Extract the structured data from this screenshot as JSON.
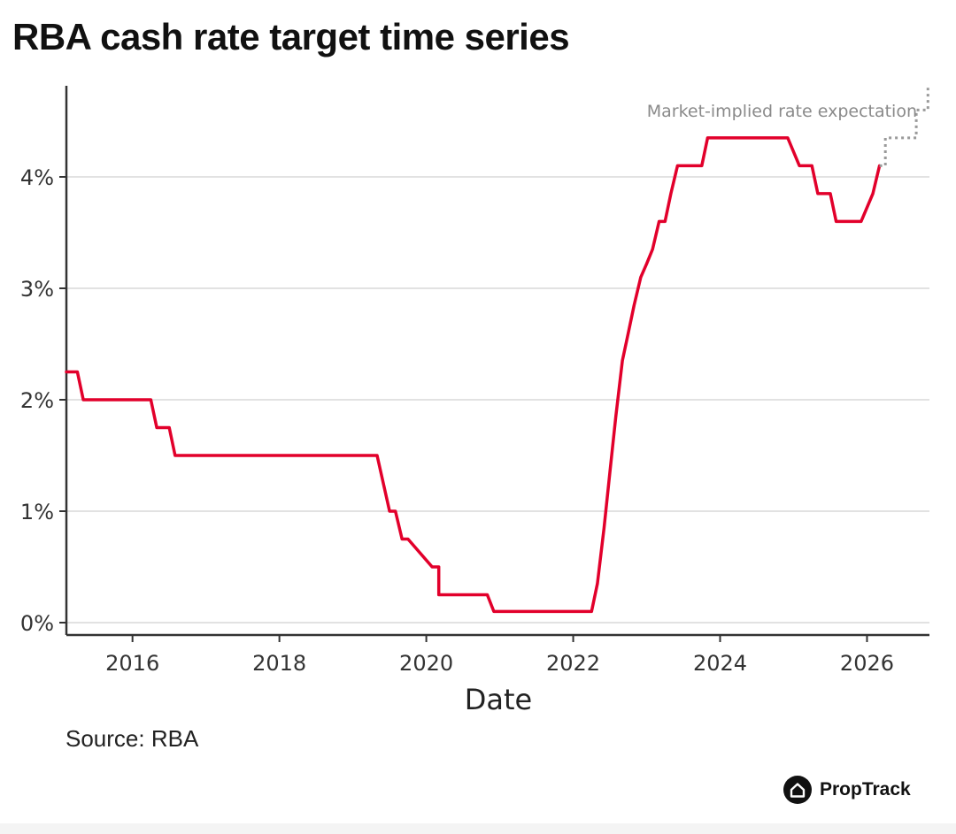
{
  "title": "RBA cash rate target time series",
  "source": "Source: RBA",
  "brand": "PropTrack",
  "icon": "proptrack-house-logo-icon",
  "colors": {
    "series": "#e2002b",
    "expectation": "#9a9a9a",
    "grid": "#d9d9d9",
    "axis": "#333333"
  },
  "chart_data": {
    "type": "line",
    "title": "RBA cash rate target time series",
    "xlabel": "Date",
    "ylabel": "",
    "xlim": [
      2015.1,
      2026.85
    ],
    "ylim": [
      0,
      4.5
    ],
    "x_ticks": [
      2016,
      2018,
      2020,
      2022,
      2024,
      2026
    ],
    "x_tick_labels": [
      "2016",
      "2018",
      "2020",
      "2022",
      "2024",
      "2026"
    ],
    "y_ticks": [
      0,
      1,
      2,
      3,
      4
    ],
    "y_tick_labels": [
      "0%",
      "1%",
      "2%",
      "3%",
      "4%"
    ],
    "grid": "horizontal",
    "series": [
      {
        "style": "solid",
        "x": [
          2015.1,
          2015.25,
          2015.33,
          2016.25,
          2016.33,
          2016.5,
          2016.58,
          2019.33,
          2019.5,
          2019.58,
          2019.67,
          2019.75,
          2020.08,
          2020.17,
          2020.17,
          2020.83,
          2020.92,
          2022.25,
          2022.33,
          2022.42,
          2022.5,
          2022.58,
          2022.67,
          2022.75,
          2022.83,
          2022.92,
          2023.0,
          2023.08,
          2023.17,
          2023.25,
          2023.33,
          2023.42,
          2023.58,
          2023.75,
          2023.83,
          2024.92,
          2025.08,
          2025.25,
          2025.33,
          2025.5,
          2025.58,
          2025.92,
          2026.08,
          2026.17
        ],
        "y": [
          2.25,
          2.25,
          2.0,
          2.0,
          1.75,
          1.75,
          1.5,
          1.5,
          1.0,
          1.0,
          0.75,
          0.75,
          0.5,
          0.5,
          0.25,
          0.25,
          0.1,
          0.1,
          0.35,
          0.85,
          1.35,
          1.85,
          2.35,
          2.6,
          2.85,
          3.1,
          3.22,
          3.35,
          3.6,
          3.6,
          3.85,
          4.1,
          4.1,
          4.1,
          4.35,
          4.35,
          4.1,
          4.1,
          3.85,
          3.85,
          3.6,
          3.6,
          3.85,
          4.1
        ]
      },
      {
        "style": "dotted",
        "x": [
          2026.17,
          2026.25,
          2026.25,
          2026.67,
          2026.67,
          2026.83,
          2026.83
        ],
        "y": [
          4.1,
          4.1,
          4.35,
          4.35,
          4.6,
          4.6,
          4.8
        ]
      }
    ],
    "annotations": [
      {
        "text": "Market-implied rate expectation",
        "series": 1
      }
    ]
  }
}
